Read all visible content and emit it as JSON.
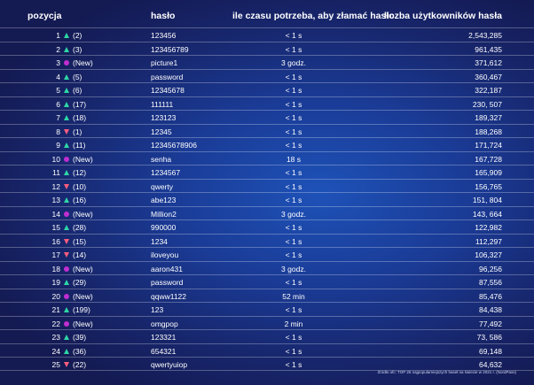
{
  "header": {
    "position": "pozycja",
    "password": "hasło",
    "time": "ile czasu potrzeba, aby złamać hasło",
    "users": "liczba użytkowników hasła"
  },
  "colors": {
    "up": "#2ed7a5",
    "down": "#ff5d7e",
    "new": "#c02ed1"
  },
  "rows": [
    {
      "rank": "1",
      "trend": "up",
      "prev": "(2)",
      "password": "123456",
      "time": "< 1 s",
      "users": "2,543,285"
    },
    {
      "rank": "2",
      "trend": "up",
      "prev": "(3)",
      "password": "123456789",
      "time": "< 1 s",
      "users": "961,435"
    },
    {
      "rank": "3",
      "trend": "new",
      "prev": "(New)",
      "password": "picture1",
      "time": "3 godz.",
      "users": "371,612"
    },
    {
      "rank": "4",
      "trend": "up",
      "prev": "(5)",
      "password": "password",
      "time": "< 1 s",
      "users": "360,467"
    },
    {
      "rank": "5",
      "trend": "up",
      "prev": "(6)",
      "password": "12345678",
      "time": "< 1 s",
      "users": "322,187"
    },
    {
      "rank": "6",
      "trend": "up",
      "prev": "(17)",
      "password": "111111",
      "time": "< 1 s",
      "users": "230, 507"
    },
    {
      "rank": "7",
      "trend": "up",
      "prev": "(18)",
      "password": "123123",
      "time": "< 1 s",
      "users": "189,327"
    },
    {
      "rank": "8",
      "trend": "down",
      "prev": "(1)",
      "password": "12345",
      "time": "< 1 s",
      "users": "188,268"
    },
    {
      "rank": "9",
      "trend": "up",
      "prev": "(11)",
      "password": "12345678906",
      "time": "< 1 s",
      "users": "171,724"
    },
    {
      "rank": "10",
      "trend": "new",
      "prev": "(New)",
      "password": "senha",
      "time": "18 s",
      "users": "167,728"
    },
    {
      "rank": "11",
      "trend": "up",
      "prev": "(12)",
      "password": "1234567",
      "time": "< 1 s",
      "users": "165,909"
    },
    {
      "rank": "12",
      "trend": "down",
      "prev": "(10)",
      "password": "qwerty",
      "time": "< 1 s",
      "users": "156,765"
    },
    {
      "rank": "13",
      "trend": "up",
      "prev": "(16)",
      "password": "abe123",
      "time": "< 1 s",
      "users": "151, 804"
    },
    {
      "rank": "14",
      "trend": "new",
      "prev": "(New)",
      "password": "Million2",
      "time": "3 godz.",
      "users": "143, 664"
    },
    {
      "rank": "15",
      "trend": "up",
      "prev": "(28)",
      "password": "990000",
      "time": "< 1 s",
      "users": "122,982"
    },
    {
      "rank": "16",
      "trend": "down",
      "prev": "(15)",
      "password": "1234",
      "time": "< 1 s",
      "users": "112,297"
    },
    {
      "rank": "17",
      "trend": "down",
      "prev": "(14)",
      "password": "iloveyou",
      "time": "< 1 s",
      "users": "106,327"
    },
    {
      "rank": "18",
      "trend": "new",
      "prev": "(New)",
      "password": "aaron431",
      "time": "3 godz.",
      "users": "96,256"
    },
    {
      "rank": "19",
      "trend": "up",
      "prev": "(29)",
      "password": "password",
      "time": "< 1 s",
      "users": "87,556"
    },
    {
      "rank": "20",
      "trend": "new",
      "prev": "(New)",
      "password": "qqww1122",
      "time": "52 min",
      "users": "85,476"
    },
    {
      "rank": "21",
      "trend": "up",
      "prev": "(199)",
      "password": "123",
      "time": "< 1 s",
      "users": "84,438"
    },
    {
      "rank": "22",
      "trend": "new",
      "prev": "(New)",
      "password": "omgpop",
      "time": "2 min",
      "users": "77,492"
    },
    {
      "rank": "23",
      "trend": "up",
      "prev": "(39)",
      "password": "123321",
      "time": "< 1 s",
      "users": "73, 586"
    },
    {
      "rank": "24",
      "trend": "up",
      "prev": "(36)",
      "password": "654321",
      "time": "< 1 s",
      "users": "69,148"
    },
    {
      "rank": "25",
      "trend": "down",
      "prev": "(22)",
      "password": "qwertyuiop",
      "time": "< 1 s",
      "users": "64,632"
    }
  ],
  "footer": "Źródło ofc: TOP 25 najpopularniejszych haseł na świecie w 2021 r. (NordPass)"
}
